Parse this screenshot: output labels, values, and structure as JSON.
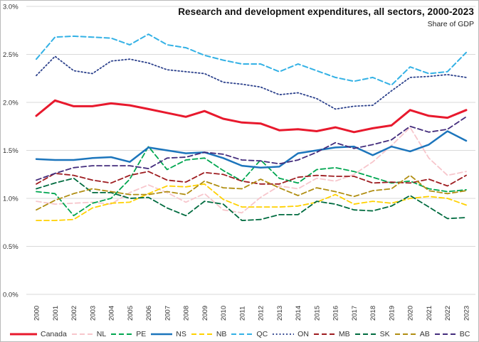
{
  "chart": {
    "title": "Research and development expenditures, all sectors, 2000-2023",
    "subtitle": "Share of GDP"
  },
  "chart_data": {
    "type": "line",
    "title": "Research and development expenditures, all sectors, 2000-2023",
    "subtitle": "Share of GDP",
    "xlabel": "",
    "ylabel": "Share of GDP (%)",
    "ylim": [
      0.0,
      3.0
    ],
    "y_ticks": [
      0.0,
      0.5,
      1.0,
      1.5,
      2.0,
      2.5,
      3.0
    ],
    "y_tick_labels": [
      "0.0%",
      "0.5%",
      "1.0%",
      "1.5%",
      "2.0%",
      "2.5%",
      "3.0%"
    ],
    "grid": "horizontal",
    "legend_position": "bottom",
    "x": [
      2000,
      2001,
      2002,
      2003,
      2004,
      2005,
      2006,
      2007,
      2008,
      2009,
      2010,
      2011,
      2012,
      2013,
      2014,
      2015,
      2016,
      2017,
      2018,
      2019,
      2020,
      2021,
      2022,
      2023
    ],
    "x_tick_labels": [
      "2000",
      "2001",
      "2002",
      "2003",
      "2004",
      "2005",
      "2006",
      "2007",
      "2008",
      "2009",
      "2010",
      "2011",
      "2012",
      "2013",
      "2014",
      "2015",
      "2016",
      "2017",
      "2018",
      "2019",
      "2020",
      "2021",
      "2022",
      "2023"
    ],
    "series": [
      {
        "name": "Canada",
        "color": "#e8192d",
        "style": "solid",
        "line_width": 3,
        "values": [
          1.86,
          2.02,
          1.96,
          1.96,
          1.99,
          1.97,
          1.93,
          1.89,
          1.85,
          1.91,
          1.83,
          1.79,
          1.78,
          1.71,
          1.72,
          1.7,
          1.74,
          1.69,
          1.73,
          1.76,
          1.92,
          1.86,
          1.84,
          1.92
        ]
      },
      {
        "name": "NL",
        "color": "#f7c6cc",
        "style": "dashed",
        "line_width": 1.8,
        "values": [
          0.97,
          0.94,
          0.95,
          0.96,
          0.94,
          1.06,
          1.14,
          1.06,
          0.96,
          1.05,
          0.88,
          0.85,
          1.01,
          1.13,
          1.1,
          1.21,
          1.18,
          1.25,
          1.38,
          1.55,
          1.74,
          1.42,
          1.24,
          1.28
        ]
      },
      {
        "name": "PE",
        "color": "#00a650",
        "style": "dashed",
        "line_width": 1.8,
        "values": [
          1.07,
          1.05,
          0.82,
          0.95,
          1.0,
          1.2,
          1.54,
          1.3,
          1.4,
          1.42,
          1.29,
          1.18,
          1.4,
          1.21,
          1.16,
          1.3,
          1.32,
          1.28,
          1.22,
          1.16,
          1.18,
          1.1,
          1.07,
          1.09
        ]
      },
      {
        "name": "NS",
        "color": "#1c75bc",
        "style": "solid",
        "line_width": 2.5,
        "values": [
          1.41,
          1.4,
          1.4,
          1.42,
          1.43,
          1.38,
          1.53,
          1.5,
          1.47,
          1.48,
          1.42,
          1.34,
          1.32,
          1.33,
          1.47,
          1.5,
          1.53,
          1.54,
          1.45,
          1.54,
          1.49,
          1.56,
          1.7,
          1.6
        ]
      },
      {
        "name": "NB",
        "color": "#ffd100",
        "style": "dashed",
        "line_width": 1.8,
        "values": [
          0.77,
          0.77,
          0.78,
          0.9,
          0.95,
          0.96,
          1.05,
          1.13,
          1.12,
          1.15,
          0.99,
          0.91,
          0.91,
          0.91,
          0.92,
          0.96,
          1.04,
          0.94,
          0.97,
          0.95,
          1.0,
          1.02,
          1.0,
          0.93
        ]
      },
      {
        "name": "QC",
        "color": "#33b1e5",
        "style": "dashed",
        "line_width": 2,
        "values": [
          2.45,
          2.68,
          2.69,
          2.68,
          2.67,
          2.6,
          2.71,
          2.6,
          2.57,
          2.49,
          2.44,
          2.4,
          2.4,
          2.32,
          2.4,
          2.33,
          2.26,
          2.22,
          2.26,
          2.18,
          2.37,
          2.3,
          2.32,
          2.52
        ]
      },
      {
        "name": "ON",
        "color": "#2c418c",
        "style": "dotted",
        "line_width": 1.8,
        "values": [
          2.28,
          2.48,
          2.33,
          2.3,
          2.43,
          2.45,
          2.41,
          2.34,
          2.32,
          2.3,
          2.21,
          2.19,
          2.16,
          2.08,
          2.1,
          2.04,
          1.93,
          1.96,
          1.97,
          2.12,
          2.26,
          2.27,
          2.29,
          2.26
        ]
      },
      {
        "name": "MB",
        "color": "#9e1c20",
        "style": "dashed",
        "line_width": 1.8,
        "values": [
          1.15,
          1.26,
          1.24,
          1.19,
          1.16,
          1.24,
          1.28,
          1.19,
          1.17,
          1.27,
          1.25,
          1.18,
          1.15,
          1.15,
          1.22,
          1.24,
          1.23,
          1.23,
          1.16,
          1.17,
          1.16,
          1.2,
          1.13,
          1.24
        ]
      },
      {
        "name": "SK",
        "color": "#006b3f",
        "style": "dashed",
        "line_width": 1.8,
        "values": [
          1.1,
          1.16,
          1.21,
          1.06,
          1.06,
          1.0,
          1.01,
          0.9,
          0.82,
          0.97,
          0.94,
          0.77,
          0.78,
          0.83,
          0.83,
          0.97,
          0.94,
          0.88,
          0.87,
          0.92,
          1.03,
          0.91,
          0.79,
          0.8
        ]
      },
      {
        "name": "AB",
        "color": "#b08e12",
        "style": "dashed",
        "line_width": 1.8,
        "values": [
          0.88,
          0.98,
          1.05,
          1.1,
          1.07,
          1.04,
          1.04,
          1.07,
          1.04,
          1.18,
          1.11,
          1.1,
          1.2,
          1.11,
          1.03,
          1.11,
          1.07,
          1.02,
          1.08,
          1.1,
          1.24,
          1.08,
          1.05,
          1.08
        ]
      },
      {
        "name": "BC",
        "color": "#432c7c",
        "style": "dashed",
        "line_width": 1.8,
        "values": [
          1.19,
          1.26,
          1.32,
          1.34,
          1.34,
          1.34,
          1.31,
          1.42,
          1.43,
          1.48,
          1.46,
          1.4,
          1.39,
          1.36,
          1.4,
          1.48,
          1.58,
          1.52,
          1.56,
          1.61,
          1.75,
          1.69,
          1.72,
          1.85
        ]
      }
    ]
  },
  "style": {
    "grid_color": "#d9d9d9",
    "tick_text_color": "#333333",
    "background": "#ffffff"
  }
}
